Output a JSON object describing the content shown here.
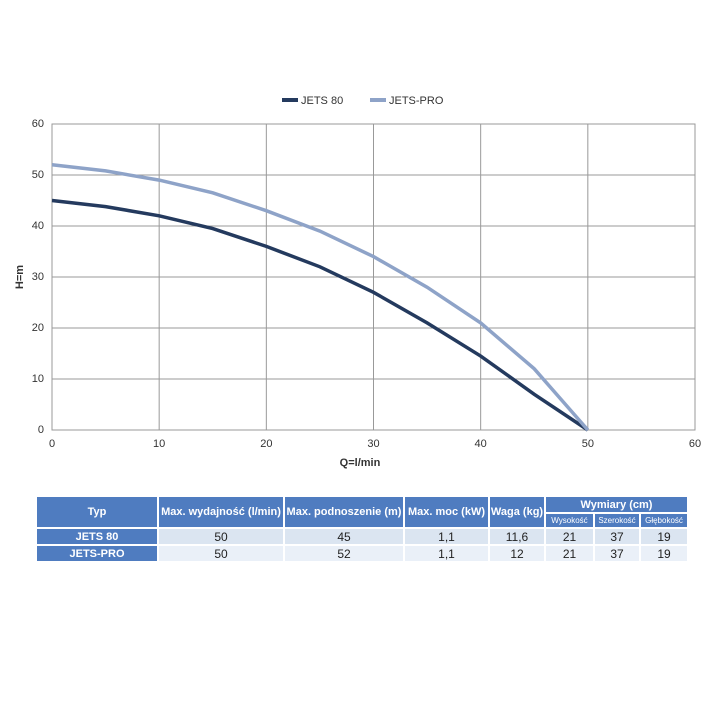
{
  "chart_data": {
    "type": "line",
    "x": [
      0,
      5,
      10,
      15,
      20,
      25,
      30,
      35,
      40,
      45,
      50
    ],
    "series": [
      {
        "name": "JETS 80",
        "color": "#243a5e",
        "values": [
          45,
          43.8,
          42,
          39.5,
          36,
          32,
          27,
          21,
          14.5,
          7,
          0
        ]
      },
      {
        "name": "JETS-PRO",
        "color": "#8ea3c8",
        "values": [
          52,
          50.8,
          49,
          46.5,
          43,
          39,
          34,
          28,
          21,
          12,
          0
        ]
      }
    ],
    "xlabel": "Q=l/min",
    "ylabel": "H=m",
    "xlim": [
      0,
      60
    ],
    "xticks": [
      0,
      10,
      20,
      30,
      40,
      50,
      60
    ],
    "ylim": [
      0,
      60
    ],
    "yticks": [
      0,
      10,
      20,
      30,
      40,
      50,
      60
    ],
    "grid": true,
    "legend": "top"
  },
  "table": {
    "header": [
      "Typ",
      "Max. wydajność (l/min)",
      "Max. podnoszenie (m)",
      "Max. moc (kW)",
      "Waga (kg)",
      "Wymiary (cm)"
    ],
    "subheader": [
      "Wysokość",
      "Szerokość",
      "Głębokość"
    ],
    "rows": [
      [
        "JETS 80",
        "50",
        "45",
        "1,1",
        "11,6",
        "21",
        "37",
        "19"
      ],
      [
        "JETS-PRO",
        "50",
        "52",
        "1,1",
        "12",
        "21",
        "37",
        "19"
      ]
    ]
  }
}
